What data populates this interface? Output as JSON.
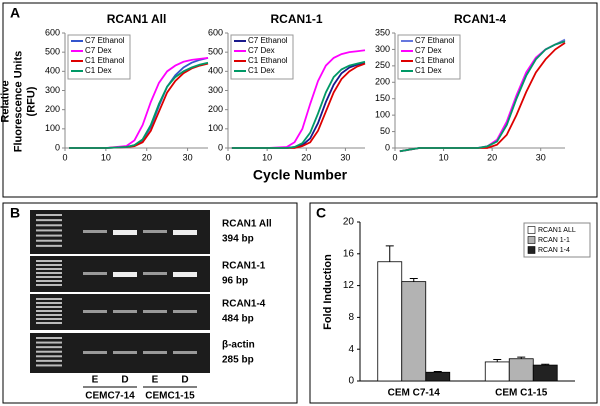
{
  "panels": [
    "A",
    "B",
    "C"
  ],
  "panel_a": {
    "ylabel": "Relative Fluorescence Units (RFU)",
    "xlabel": "Cycle Number"
  },
  "chart_data": [
    {
      "type": "line",
      "title": "RCAN1 All",
      "x": [
        1,
        5,
        10,
        15,
        17,
        19,
        21,
        23,
        25,
        27,
        29,
        31,
        33,
        35
      ],
      "xlim": [
        0,
        35
      ],
      "xticks": [
        0,
        10,
        20,
        30
      ],
      "ylim": [
        0,
        600
      ],
      "yticks": [
        0,
        100,
        200,
        300,
        400,
        500,
        600
      ],
      "series": [
        {
          "name": "C7 Ethanol",
          "color": "#3355cc",
          "values": [
            0,
            0,
            0,
            5,
            15,
            40,
            110,
            220,
            320,
            380,
            420,
            445,
            460,
            470
          ]
        },
        {
          "name": "C7 Dex",
          "color": "#ff00ff",
          "values": [
            0,
            0,
            0,
            10,
            40,
            120,
            240,
            340,
            400,
            430,
            450,
            460,
            465,
            470
          ]
        },
        {
          "name": "C1 Ethanol",
          "color": "#dd0000",
          "values": [
            0,
            0,
            0,
            5,
            10,
            30,
            90,
            190,
            290,
            350,
            390,
            415,
            430,
            440
          ]
        },
        {
          "name": "C1 Dex",
          "color": "#009966",
          "values": [
            0,
            0,
            0,
            5,
            15,
            45,
            120,
            230,
            320,
            370,
            400,
            420,
            435,
            445
          ]
        }
      ]
    },
    {
      "type": "line",
      "title": "RCAN1-1",
      "x": [
        1,
        5,
        10,
        15,
        17,
        19,
        21,
        23,
        25,
        27,
        29,
        31,
        33,
        35
      ],
      "xlim": [
        0,
        35
      ],
      "xticks": [
        0,
        10,
        20,
        30
      ],
      "ylim": [
        0,
        600
      ],
      "yticks": [
        0,
        100,
        200,
        300,
        400,
        500,
        600
      ],
      "series": [
        {
          "name": "C7 Ethanol",
          "color": "#1a1a8c",
          "values": [
            0,
            0,
            0,
            0,
            5,
            15,
            50,
            130,
            240,
            330,
            390,
            420,
            435,
            445
          ]
        },
        {
          "name": "C7 Dex",
          "color": "#ff00ff",
          "values": [
            0,
            0,
            0,
            5,
            30,
            100,
            230,
            350,
            430,
            470,
            490,
            500,
            505,
            510
          ]
        },
        {
          "name": "C1 Ethanol",
          "color": "#dd0000",
          "values": [
            0,
            0,
            0,
            0,
            0,
            10,
            30,
            90,
            190,
            290,
            360,
            400,
            425,
            440
          ]
        },
        {
          "name": "C1 Dex",
          "color": "#009966",
          "values": [
            0,
            0,
            0,
            0,
            5,
            25,
            80,
            180,
            290,
            370,
            410,
            430,
            440,
            450
          ]
        }
      ]
    },
    {
      "type": "line",
      "title": "RCAN1-4",
      "x": [
        1,
        5,
        10,
        15,
        17,
        19,
        21,
        23,
        25,
        27,
        29,
        31,
        33,
        35
      ],
      "xlim": [
        0,
        35
      ],
      "xticks": [
        0,
        10,
        20,
        30
      ],
      "ylim": [
        0,
        350
      ],
      "yticks": [
        0,
        50,
        100,
        150,
        200,
        250,
        300,
        350
      ],
      "series": [
        {
          "name": "C7 Ethanol",
          "color": "#6677dd",
          "values": [
            -10,
            0,
            0,
            0,
            0,
            5,
            20,
            70,
            150,
            220,
            270,
            300,
            315,
            330
          ]
        },
        {
          "name": "C7 Dex",
          "color": "#ff00ff",
          "values": [
            -10,
            0,
            0,
            0,
            0,
            5,
            25,
            80,
            160,
            230,
            275,
            300,
            315,
            325
          ]
        },
        {
          "name": "C1 Ethanol",
          "color": "#dd0000",
          "values": [
            -10,
            0,
            0,
            0,
            0,
            0,
            10,
            40,
            100,
            170,
            230,
            270,
            300,
            320
          ]
        },
        {
          "name": "C1 Dex",
          "color": "#009966",
          "values": [
            -10,
            0,
            0,
            0,
            0,
            5,
            20,
            70,
            150,
            220,
            270,
            300,
            315,
            325
          ]
        }
      ]
    },
    {
      "type": "bar",
      "ylabel": "Fold Induction",
      "categories": [
        "CEM C7-14",
        "CEM C1-15"
      ],
      "ylim": [
        0,
        20
      ],
      "yticks": [
        0,
        4,
        8,
        12,
        16,
        20
      ],
      "series": [
        {
          "name": "RCAN1 ALL",
          "color": "#ffffff",
          "values": [
            15,
            2.4
          ],
          "errors": [
            2,
            0.3
          ]
        },
        {
          "name": "RCAN 1-1",
          "color": "#b3b3b3",
          "values": [
            12.5,
            2.8
          ],
          "errors": [
            0.4,
            0.2
          ]
        },
        {
          "name": "RCAN 1-4",
          "color": "#222222",
          "values": [
            1.1,
            2
          ],
          "errors": [
            0.1,
            0.1
          ]
        }
      ]
    }
  ],
  "gel": {
    "bands": [
      {
        "name": "RCAN1 All",
        "size": "394 bp"
      },
      {
        "name": "RCAN1-1",
        "size": "96 bp"
      },
      {
        "name": "RCAN1-4",
        "size": "484 bp"
      },
      {
        "name": "β-actin",
        "size": "285 bp"
      }
    ],
    "lanes": [
      "E",
      "D",
      "E",
      "D"
    ],
    "groups": [
      "CEMC7-14",
      "CEMC1-15"
    ]
  }
}
